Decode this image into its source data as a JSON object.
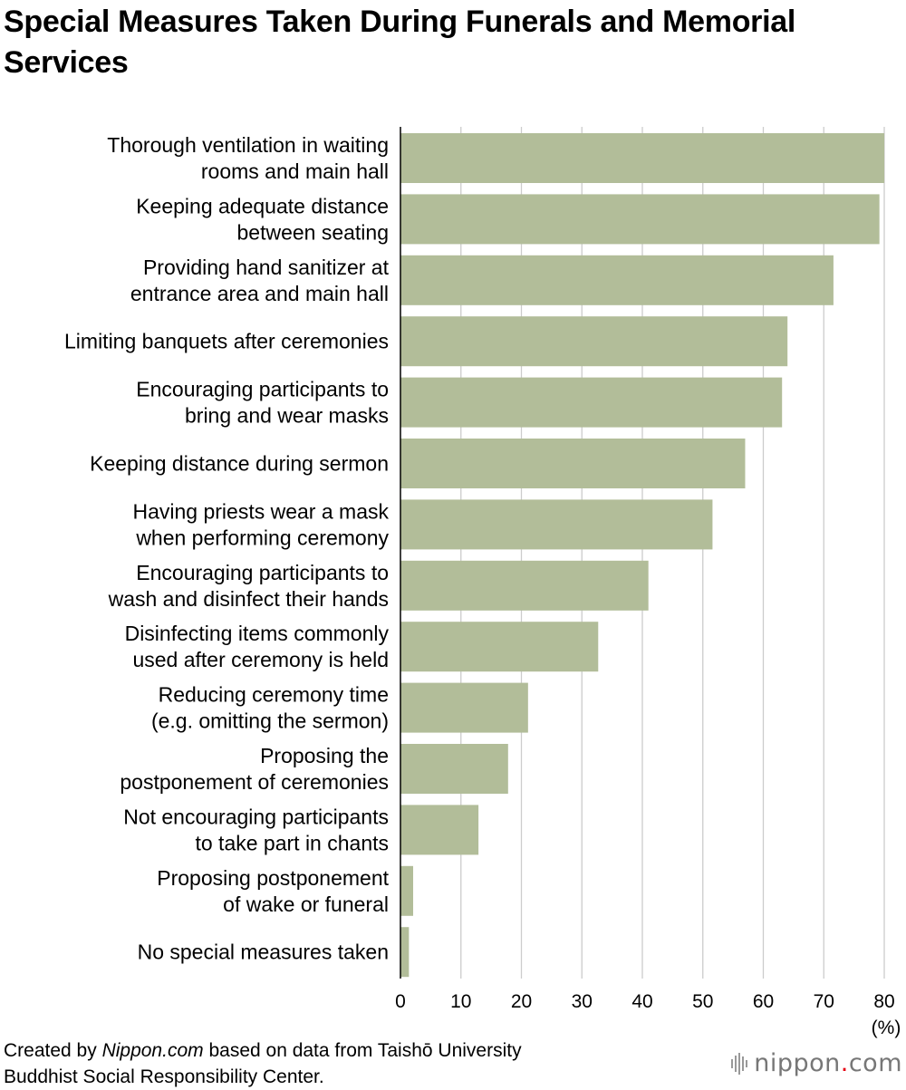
{
  "chart_data": {
    "type": "bar",
    "orientation": "horizontal",
    "title": "Special Measures Taken During Funerals and Memorial Services",
    "categories": [
      [
        "Thorough ventilation in waiting",
        "rooms and main hall"
      ],
      [
        "Keeping adequate distance",
        "between seating"
      ],
      [
        "Providing hand sanitizer at",
        "entrance area and main hall"
      ],
      [
        "Limiting banquets after ceremonies"
      ],
      [
        "Encouraging participants to",
        "bring and wear masks"
      ],
      [
        "Keeping distance during sermon"
      ],
      [
        "Having priests wear a mask",
        "when performing ceremony"
      ],
      [
        "Encouraging participants to",
        "wash and disinfect their hands"
      ],
      [
        "Disinfecting items commonly",
        "used after ceremony is held"
      ],
      [
        "Reducing ceremony time",
        "(e.g. omitting the sermon)"
      ],
      [
        "Proposing the",
        "postponement of ceremonies"
      ],
      [
        "Not encouraging participants",
        "to take part in chants"
      ],
      [
        "Proposing postponement",
        "of wake or funeral"
      ],
      [
        "No special measures taken"
      ]
    ],
    "values": [
      80.0,
      79.2,
      71.6,
      64.0,
      63.1,
      57.0,
      51.6,
      41.0,
      32.7,
      21.1,
      17.8,
      12.9,
      2.1,
      1.4
    ],
    "xlim": [
      0,
      80
    ],
    "xticks": [
      "0",
      "10",
      "20",
      "30",
      "40",
      "50",
      "60",
      "70",
      "80"
    ],
    "xunit": "(%)",
    "grid": true,
    "bar_color": "#b2bd99",
    "grid_color": "#cccccc",
    "axis_color": "#000000"
  },
  "source": {
    "prefix": "Created by ",
    "site": "Nippon.com",
    "suffix": " based on data from Taishō University",
    "line2": "Buddhist Social Responsibility Center."
  },
  "logo": {
    "icon": "sound-bars-icon",
    "name": "nippon",
    "dot": ".",
    "domain": "com",
    "dot_color": "#e60012"
  }
}
